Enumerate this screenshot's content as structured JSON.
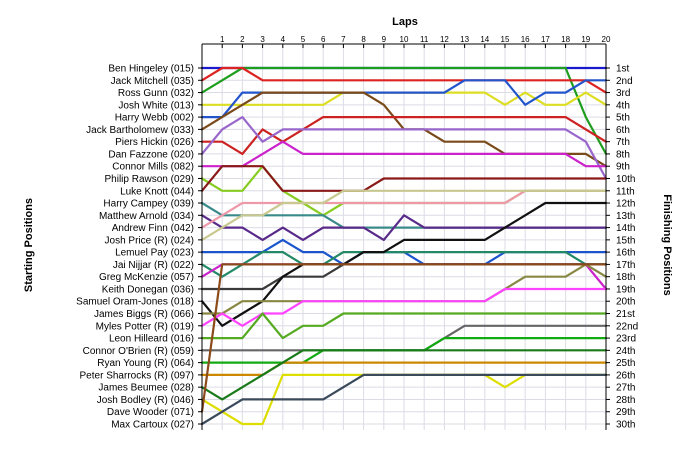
{
  "chart_data": {
    "type": "line",
    "title": "Laps",
    "ylabel_left": "Starting Positions",
    "ylabel_right": "Finishing Positions",
    "x_ticks": [
      "1",
      "2",
      "3",
      "4",
      "5",
      "6",
      "7",
      "8",
      "9",
      "10",
      "11",
      "12",
      "13",
      "14",
      "15",
      "16",
      "17",
      "18",
      "19",
      "20"
    ],
    "y_range": [
      1,
      30
    ],
    "grid": true,
    "starting_positions": [
      "Ben Hingeley (015)",
      "Jack Mitchell (035)",
      "Ross Gunn (032)",
      "Josh White (013)",
      "Harry Webb (002)",
      "Jack Bartholomew (033)",
      "Piers Hickin (026)",
      "Dan Fazzone (020)",
      "Connor Mills (082)",
      "Philip Rawson (029)",
      "Luke Knott (044)",
      "Harry Campey (039)",
      "Matthew Arnold (034)",
      "Andrew Finn (042)",
      "Josh Price (R) (024)",
      "Lemuel Pay (023)",
      "Jai Nijjar (R) (022)",
      "Greg McKenzie (057)",
      "Keith Donegan (036)",
      "Samuel Oram-Jones (018)",
      "James Biggs (R) (066)",
      "Myles Potter (R) (019)",
      "Leon Hilleard (016)",
      "Connor O'Brien (R) (059)",
      "Ryan Young (R) (064)",
      "Peter Sharrocks (R) (097)",
      "James Beumee (028)",
      "Josh Bodley (R) (046)",
      "Dave Wooder (071)",
      "Max Cartoux (027)"
    ],
    "finishing_positions": [
      "1st",
      "2nd",
      "3rd",
      "4th",
      "5th",
      "6th",
      "7th",
      "8th",
      "9th",
      "10th",
      "11th",
      "12th",
      "13th",
      "14th",
      "15th",
      "16th",
      "17th",
      "18th",
      "19th",
      "20th",
      "21st",
      "22nd",
      "23rd",
      "24th",
      "25th",
      "26th",
      "27th",
      "28th",
      "29th",
      "30th"
    ],
    "series": [
      {
        "color": "#1a1acc",
        "values": [
          1,
          1,
          1,
          1,
          1,
          1,
          1,
          1,
          1,
          1,
          1,
          1,
          1,
          1,
          1,
          1,
          1,
          1,
          1,
          1,
          1
        ]
      },
      {
        "color": "#1e9e1e",
        "values": [
          3,
          2,
          1,
          1,
          1,
          1,
          1,
          1,
          1,
          1,
          1,
          1,
          1,
          1,
          1,
          1,
          1,
          1,
          1,
          5,
          8
        ]
      },
      {
        "color": "#dd2222",
        "values": [
          2,
          1,
          1,
          2,
          2,
          2,
          2,
          2,
          2,
          2,
          2,
          2,
          2,
          2,
          2,
          2,
          2,
          2,
          2,
          2,
          3
        ]
      },
      {
        "color": "#dddd22",
        "values": [
          4,
          4,
          4,
          4,
          4,
          4,
          4,
          3,
          3,
          3,
          3,
          3,
          3,
          3,
          3,
          4,
          3,
          4,
          4,
          3,
          4
        ]
      },
      {
        "color": "#2255cc",
        "values": [
          5,
          5,
          3,
          3,
          3,
          3,
          3,
          3,
          3,
          3,
          3,
          3,
          3,
          2,
          2,
          2,
          4,
          3,
          3,
          2,
          2
        ]
      },
      {
        "color": "#7a4a1a",
        "values": [
          6,
          5,
          4,
          3,
          3,
          3,
          3,
          3,
          3,
          4,
          6,
          6,
          7,
          7,
          7,
          8,
          8,
          8,
          8,
          8,
          9
        ]
      },
      {
        "color": "#cc2222",
        "values": [
          7,
          7,
          8,
          6,
          7,
          6,
          5,
          5,
          5,
          5,
          5,
          5,
          5,
          5,
          5,
          5,
          5,
          5,
          5,
          6,
          7
        ]
      },
      {
        "color": "#9966cc",
        "values": [
          8,
          6,
          5,
          7,
          6,
          6,
          6,
          6,
          6,
          6,
          6,
          6,
          6,
          6,
          6,
          6,
          6,
          6,
          6,
          7,
          10
        ]
      },
      {
        "color": "#cc22cc",
        "values": [
          9,
          9,
          9,
          8,
          7,
          8,
          8,
          8,
          8,
          8,
          8,
          8,
          8,
          8,
          8,
          8,
          8,
          8,
          8,
          9,
          9
        ]
      },
      {
        "color": "#88cc22",
        "values": [
          10,
          11,
          11,
          9,
          11,
          12,
          13,
          12,
          12,
          12,
          12,
          12,
          12,
          12,
          12,
          12,
          11,
          11,
          11,
          11,
          11
        ]
      },
      {
        "color": "#8a1a1a",
        "values": [
          11,
          9,
          9,
          9,
          11,
          11,
          11,
          11,
          11,
          10,
          10,
          10,
          10,
          10,
          10,
          10,
          10,
          10,
          10,
          10,
          10
        ]
      },
      {
        "color": "#3a8a8a",
        "values": [
          12,
          13,
          13,
          13,
          13,
          13,
          13,
          14,
          14,
          14,
          14,
          14,
          14,
          14,
          14,
          14,
          14,
          14,
          14,
          14,
          14
        ]
      },
      {
        "color": "#5a2a8a",
        "values": [
          13,
          14,
          14,
          15,
          14,
          15,
          14,
          14,
          14,
          15,
          13,
          14,
          14,
          14,
          14,
          14,
          14,
          14,
          14,
          14,
          14
        ]
      },
      {
        "color": "#ee99aa",
        "values": [
          14,
          13,
          12,
          12,
          12,
          12,
          12,
          12,
          12,
          12,
          12,
          12,
          12,
          12,
          12,
          12,
          11,
          11,
          11,
          11,
          11
        ]
      },
      {
        "color": "#c8c890",
        "values": [
          15,
          14,
          13,
          13,
          12,
          12,
          12,
          11,
          11,
          11,
          11,
          11,
          11,
          11,
          11,
          11,
          11,
          11,
          11,
          11,
          11
        ]
      },
      {
        "color": "#1a55cc",
        "values": [
          16,
          16,
          16,
          16,
          15,
          16,
          16,
          17,
          16,
          16,
          16,
          17,
          17,
          17,
          17,
          16,
          16,
          16,
          16,
          16,
          16
        ]
      },
      {
        "color": "#228866",
        "values": [
          17,
          18,
          17,
          16,
          16,
          17,
          17,
          16,
          16,
          16,
          16,
          16,
          16,
          16,
          16,
          16,
          16,
          16,
          16,
          17,
          17
        ]
      },
      {
        "color": "#cc22cc",
        "values": [
          18,
          17,
          17,
          17,
          17,
          17,
          17,
          17,
          17,
          17,
          17,
          17,
          17,
          17,
          17,
          17,
          17,
          17,
          17,
          17,
          19
        ]
      },
      {
        "color": "#3a3a3a",
        "values": [
          19,
          19,
          19,
          19,
          18,
          18,
          18,
          17,
          17,
          17,
          17,
          17,
          17,
          17,
          17,
          17,
          17,
          17,
          17,
          17,
          17
        ]
      },
      {
        "color": "#111111",
        "values": [
          20,
          22,
          21,
          20,
          18,
          17,
          17,
          17,
          16,
          16,
          15,
          15,
          15,
          15,
          15,
          14,
          13,
          12,
          12,
          12,
          12
        ]
      },
      {
        "color": "#888844",
        "values": [
          21,
          21,
          20,
          20,
          20,
          20,
          20,
          20,
          20,
          20,
          20,
          20,
          20,
          20,
          20,
          19,
          18,
          18,
          18,
          17,
          18
        ]
      },
      {
        "color": "#ff44ff",
        "values": [
          22,
          21,
          22,
          21,
          21,
          20,
          20,
          20,
          20,
          20,
          20,
          20,
          20,
          20,
          20,
          19,
          19,
          19,
          19,
          19,
          19
        ]
      },
      {
        "color": "#55aa22",
        "values": [
          23,
          23,
          23,
          21,
          23,
          22,
          22,
          21,
          21,
          21,
          21,
          21,
          21,
          21,
          21,
          21,
          21,
          21,
          21,
          21,
          21
        ]
      },
      {
        "color": "#666666",
        "values": [
          24,
          24,
          24,
          24,
          24,
          24,
          24,
          24,
          24,
          24,
          24,
          24,
          23,
          22,
          22,
          22,
          22,
          22,
          22,
          22,
          22
        ]
      },
      {
        "color": "#11aa11",
        "values": [
          25,
          25,
          25,
          25,
          25,
          25,
          24,
          24,
          24,
          24,
          24,
          24,
          23,
          23,
          23,
          23,
          23,
          23,
          23,
          23,
          23
        ]
      },
      {
        "color": "#cc8800",
        "values": [
          26,
          26,
          26,
          26,
          25,
          25,
          25,
          25,
          25,
          25,
          25,
          25,
          25,
          25,
          25,
          25,
          25,
          25,
          25,
          25,
          25
        ]
      },
      {
        "color": "#1a7a1a",
        "values": [
          27,
          28,
          27,
          26,
          25,
          24,
          24,
          24,
          24,
          24,
          24,
          24,
          24,
          24,
          24,
          24,
          24,
          24,
          24,
          24,
          24
        ]
      },
      {
        "color": "#dddd00",
        "values": [
          28,
          29,
          30,
          30,
          26,
          26,
          26,
          26,
          26,
          26,
          26,
          26,
          26,
          26,
          26,
          27,
          26,
          26,
          26,
          26,
          26
        ]
      },
      {
        "color": "#8a4a1a",
        "values": [
          29,
          17,
          17,
          17,
          17,
          17,
          17,
          17,
          17,
          17,
          17,
          17,
          17,
          17,
          17,
          17,
          17,
          17,
          17,
          17,
          17
        ]
      },
      {
        "color": "#3a4a5a",
        "values": [
          30,
          29,
          28,
          28,
          28,
          28,
          28,
          27,
          26,
          26,
          26,
          26,
          26,
          26,
          26,
          26,
          26,
          26,
          26,
          26,
          26
        ]
      }
    ]
  }
}
